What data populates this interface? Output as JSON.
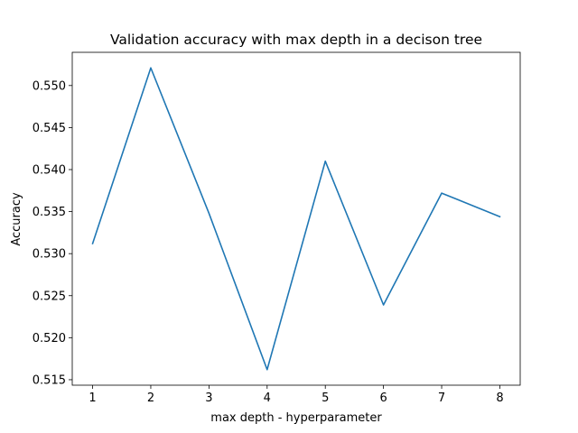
{
  "chart_data": {
    "type": "line",
    "title": "Validation accuracy with max depth in a decison tree",
    "xlabel": "max depth - hyperparameter",
    "ylabel": "Accuracy",
    "x": [
      1,
      2,
      3,
      4,
      5,
      6,
      7,
      8
    ],
    "series": [
      {
        "values": [
          0.5312,
          0.5521,
          0.5348,
          0.5162,
          0.541,
          0.5239,
          0.5372,
          0.5344
        ],
        "color": "#1f77b4"
      }
    ],
    "xlim": [
      0.65,
      8.35
    ],
    "ylim": [
      0.51435,
      0.55395
    ],
    "xticks": [
      "1",
      "2",
      "3",
      "4",
      "5",
      "6",
      "7",
      "8"
    ],
    "yticks": [
      "0.515",
      "0.520",
      "0.525",
      "0.530",
      "0.535",
      "0.540",
      "0.545",
      "0.550"
    ],
    "grid": false
  }
}
